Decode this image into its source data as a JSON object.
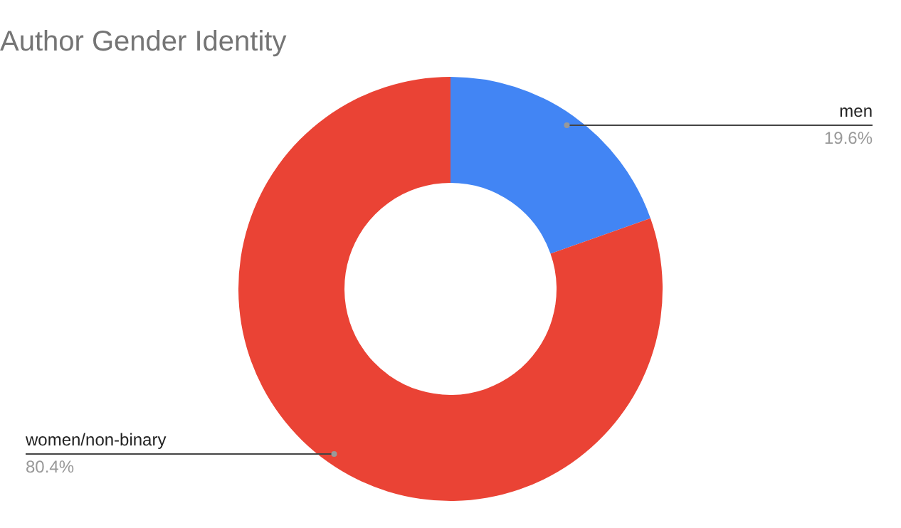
{
  "chart_data": {
    "type": "donut",
    "title": "Author Gender Identity",
    "categories": [
      "men",
      "women/non-binary"
    ],
    "values": [
      19.6,
      80.4
    ],
    "colors": [
      "#4285f4",
      "#ea4335"
    ],
    "value_labels": [
      "19.6%",
      "80.4%"
    ],
    "legend": false
  }
}
